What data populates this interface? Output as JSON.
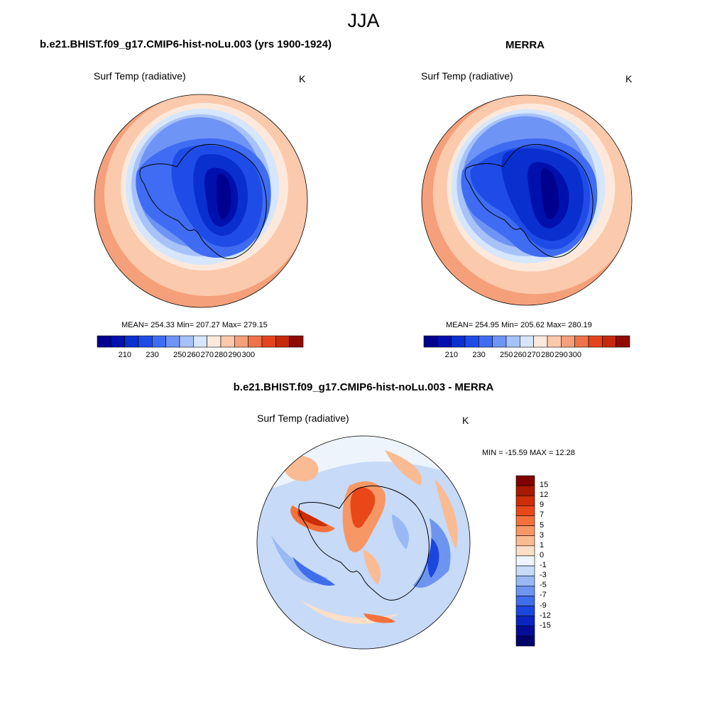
{
  "figure": {
    "title": "JJA",
    "season": "JJA"
  },
  "panels": {
    "model": {
      "title": "b.e21.BHIST.f09_g17.CMIP6-hist-noLu.003 (yrs 1900-1924)",
      "variable": "Surf Temp (radiative)",
      "units": "K",
      "stats": "MEAN= 254.33  Min= 207.27  Max= 279.15"
    },
    "obs": {
      "title": "MERRA",
      "variable": "Surf Temp (radiative)",
      "units": "K",
      "stats": "MEAN= 254.95  Min= 205.62  Max= 280.19"
    },
    "diff": {
      "title": "b.e21.BHIST.f09_g17.CMIP6-hist-noLu.003 - MERRA",
      "variable": "Surf Temp (radiative)",
      "units": "K",
      "stats": "MIN = -15.59 MAX =  12.28"
    }
  },
  "colorbars": {
    "absolute": {
      "ticks": [
        "210",
        "230",
        "250",
        "260",
        "270",
        "280",
        "290",
        "300"
      ],
      "colors": [
        "#00008f",
        "#0010ad",
        "#0a2fcf",
        "#1f4be6",
        "#3f6cf2",
        "#6e94f5",
        "#a6c2f9",
        "#d6e6fc",
        "#fde9dc",
        "#fbc9ac",
        "#f5a07a",
        "#ef7249",
        "#e3441f",
        "#c62a0c",
        "#8f0b00"
      ]
    },
    "difference": {
      "ticks": [
        "15",
        "12",
        "9",
        "7",
        "5",
        "3",
        "1",
        "0",
        "-1",
        "-3",
        "-5",
        "-7",
        "-9",
        "-12",
        "-15"
      ],
      "colors": [
        "#800000",
        "#a81800",
        "#cd2e05",
        "#ea4719",
        "#f4713c",
        "#f79766",
        "#fabb93",
        "#fddec6",
        "#eef4fc",
        "#c7daf8",
        "#98b9f4",
        "#6d95f0",
        "#3f6deb",
        "#1c47df",
        "#0c24c2",
        "#040c98",
        "#00006b"
      ]
    }
  }
}
